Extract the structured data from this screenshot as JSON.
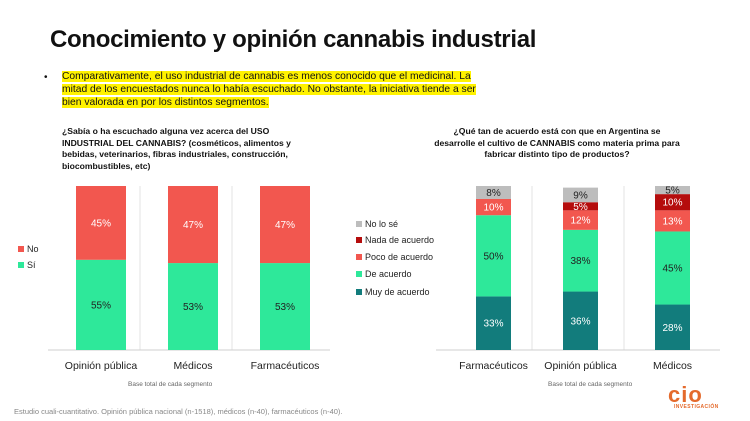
{
  "title": "Conocimiento y opinión cannabis industrial",
  "bullet": "Comparativamente, el uso industrial de cannabis es menos conocido que el medicinal. La mitad de los encuestados nunca lo había escuchado.  No obstante, la iniciativa tiende a ser bien valorada en por los distintos segmentos.",
  "bullet_symbol": "•",
  "question_left": "¿Sabía o ha escuchado alguna vez acerca del USO INDUSTRIAL DEL CANNABIS?    (cosméticos, alimentos y bebidas, veterinarios, fibras industriales, construcción, biocombustibles, etc)",
  "question_right": "¿Qué tan de acuerdo está con que en Argentina se desarrolle el cultivo de CANNABIS como materia prima para fabricar distinto tipo de productos?",
  "base_note": "Base total de cada segmento",
  "source": "Estudio cuali-cuantitativo. Opinión pública nacional (n-1518), médicos (n-40), farmacéuticos (n-40).",
  "logo": {
    "main": "cio",
    "sub": "INVESTIGACIÓN"
  },
  "chart_data": [
    {
      "type": "bar",
      "stacked": true,
      "categories": [
        "Opinión pública",
        "Médicos",
        "Farmacéuticos"
      ],
      "series": [
        {
          "name": "Sí",
          "color": "#2ee89a",
          "values": [
            55,
            53,
            53
          ],
          "labels": [
            "55%",
            "53%",
            "53%"
          ]
        },
        {
          "name": "No",
          "color": "#f2574f",
          "values": [
            45,
            47,
            47
          ],
          "labels": [
            "45%",
            "47%",
            "47%"
          ]
        }
      ],
      "legend": [
        "No",
        "Sí"
      ],
      "legend_position": "left",
      "ylim": [
        0,
        100
      ],
      "grid": false
    },
    {
      "type": "bar",
      "stacked": true,
      "categories": [
        "Farmacéuticos",
        "Opinión pública",
        "Médicos"
      ],
      "series": [
        {
          "name": "Muy de acuerdo",
          "color": "#127c7c",
          "values": [
            33,
            36,
            28
          ],
          "labels": [
            "33%",
            "36%",
            "28%"
          ]
        },
        {
          "name": "De acuerdo",
          "color": "#2ee89a",
          "values": [
            50,
            38,
            45
          ],
          "labels": [
            "50%",
            "38%",
            "45%"
          ]
        },
        {
          "name": "Poco de acuerdo",
          "color": "#f2574f",
          "values": [
            10,
            12,
            13
          ],
          "labels": [
            "10%",
            "12%",
            "13%"
          ]
        },
        {
          "name": "Nada de acuerdo",
          "color": "#b50d0d",
          "values": [
            0,
            5,
            10
          ],
          "labels": [
            "",
            "5%",
            "10%"
          ]
        },
        {
          "name": "No lo sé",
          "color": "#bdbdbd",
          "values": [
            8,
            9,
            5
          ],
          "labels": [
            "8%",
            "9%",
            "5%"
          ]
        }
      ],
      "legend": [
        "No lo sé",
        "Nada de acuerdo",
        "Poco de acuerdo",
        "De acuerdo",
        "Muy de acuerdo"
      ],
      "legend_position": "left",
      "ylim": [
        0,
        101
      ],
      "grid": false
    }
  ]
}
